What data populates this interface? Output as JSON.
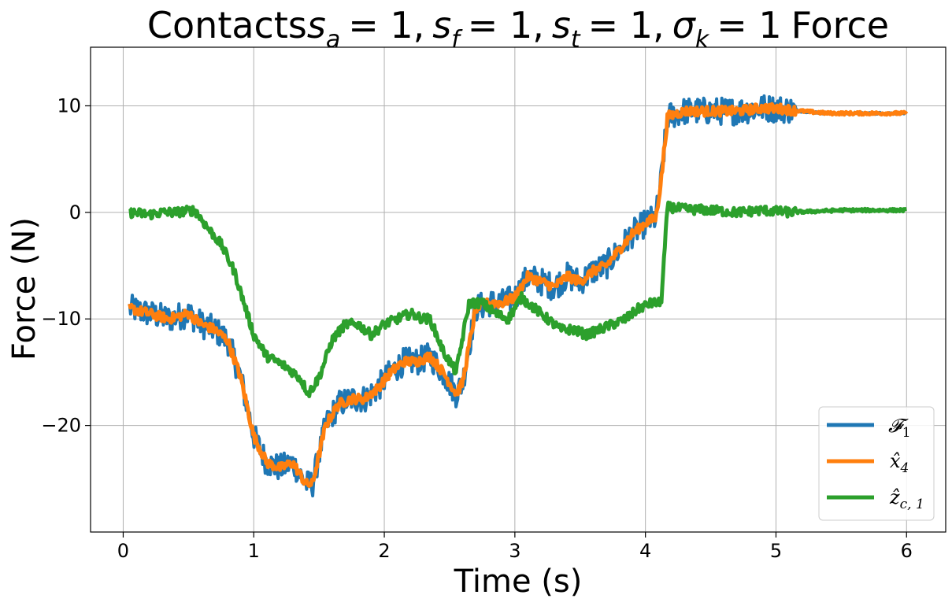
{
  "chart_data": {
    "type": "line",
    "title": "Contacts_a = 1, s_f = 1, s_t = 1, σ_k = 1 Force",
    "title_parts": {
      "prefix": "Contacts",
      "a_sub": "a",
      "f_sub": "f",
      "t_sub": "t",
      "k_sub": "k",
      "eq": "= 1,",
      "eq_last": "= 1",
      "s": "s",
      "sigma": "σ",
      "suffix": "Force"
    },
    "xlabel": "Time (s)",
    "ylabel": "Force (N)",
    "xlim": [
      -0.25,
      6.3
    ],
    "ylim": [
      -30,
      15.5
    ],
    "xticks": [
      0,
      1,
      2,
      3,
      4,
      5,
      6
    ],
    "xtick_labels": [
      "0",
      "1",
      "2",
      "3",
      "4",
      "5",
      "6"
    ],
    "yticks": [
      10,
      0,
      -10,
      -20
    ],
    "ytick_labels": [
      "10",
      "0",
      "−10",
      "−20"
    ],
    "grid": true,
    "legend_position": "lower-right",
    "series": [
      {
        "name": "𝓕₁",
        "legend_main": "𝓕",
        "legend_sub": "1",
        "color": "#1f77b4",
        "noise": 1.3,
        "x": [
          0.05,
          0.2,
          0.35,
          0.5,
          0.6,
          0.7,
          0.8,
          0.9,
          1.0,
          1.1,
          1.2,
          1.3,
          1.4,
          1.45,
          1.55,
          1.65,
          1.75,
          1.85,
          1.95,
          2.05,
          2.15,
          2.25,
          2.35,
          2.45,
          2.55,
          2.6,
          2.7,
          2.8,
          2.9,
          3.0,
          3.1,
          3.2,
          3.3,
          3.4,
          3.5,
          3.6,
          3.7,
          3.8,
          3.9,
          4.0,
          4.08,
          4.12,
          4.17,
          4.3,
          4.5,
          4.7,
          4.9,
          5.05,
          5.2,
          5.4,
          5.6,
          5.8,
          6.0
        ],
        "y": [
          -9,
          -9.5,
          -10,
          -9.5,
          -10.5,
          -11,
          -12,
          -15.5,
          -21,
          -23.5,
          -24,
          -23.5,
          -25.5,
          -25.5,
          -20,
          -18,
          -17.5,
          -17.5,
          -16.5,
          -15,
          -14,
          -14,
          -13.5,
          -15,
          -17,
          -16,
          -9,
          -8.5,
          -8.5,
          -8,
          -6,
          -6.5,
          -7,
          -6,
          -6.5,
          -5.5,
          -5,
          -3.5,
          -2,
          -1,
          -0.5,
          3,
          9,
          9.5,
          9.5,
          9.5,
          9.8,
          9.7,
          9.5,
          9.3,
          9.3,
          9.3,
          9.3
        ]
      },
      {
        "name": "x̂₄",
        "legend_main": "x̂",
        "legend_sub": "4",
        "color": "#ff7f0e",
        "noise": 0.45,
        "x": [
          0.05,
          0.2,
          0.35,
          0.5,
          0.6,
          0.7,
          0.8,
          0.9,
          1.0,
          1.1,
          1.2,
          1.3,
          1.4,
          1.45,
          1.55,
          1.65,
          1.75,
          1.85,
          1.95,
          2.05,
          2.15,
          2.25,
          2.35,
          2.45,
          2.55,
          2.6,
          2.7,
          2.8,
          2.9,
          3.0,
          3.1,
          3.2,
          3.3,
          3.4,
          3.5,
          3.6,
          3.7,
          3.8,
          3.9,
          4.0,
          4.08,
          4.12,
          4.17,
          4.3,
          4.5,
          4.7,
          4.9,
          5.05,
          5.2,
          5.4,
          5.6,
          5.8,
          6.0
        ],
        "y": [
          -9,
          -9.5,
          -10,
          -9.5,
          -10.5,
          -11,
          -12,
          -15.5,
          -21,
          -23.5,
          -24,
          -23.5,
          -25.5,
          -25.5,
          -20,
          -18,
          -17.5,
          -17.5,
          -16.5,
          -15,
          -14,
          -14,
          -13.5,
          -15,
          -17,
          -16,
          -9,
          -8.5,
          -8.5,
          -8,
          -6,
          -6.5,
          -7,
          -6,
          -6.5,
          -5.5,
          -5,
          -3.5,
          -2,
          -1,
          -0.5,
          3,
          9,
          9.5,
          9.5,
          9.5,
          9.8,
          9.7,
          9.5,
          9.3,
          9.3,
          9.3,
          9.3
        ]
      },
      {
        "name": "ẑ_c,1",
        "legend_main": "ẑ",
        "legend_sub": "c, 1",
        "color": "#2ca02c",
        "noise": 0.45,
        "x": [
          0.05,
          0.2,
          0.3,
          0.4,
          0.55,
          0.65,
          0.75,
          0.85,
          0.95,
          1.0,
          1.1,
          1.25,
          1.35,
          1.42,
          1.5,
          1.6,
          1.7,
          1.8,
          1.9,
          2.0,
          2.1,
          2.2,
          2.3,
          2.35,
          2.45,
          2.55,
          2.65,
          2.75,
          2.85,
          2.95,
          3.05,
          3.15,
          3.25,
          3.35,
          3.45,
          3.55,
          3.65,
          3.75,
          3.85,
          3.95,
          4.05,
          4.12,
          4.17,
          4.3,
          4.5,
          4.7,
          4.9,
          5.1,
          5.3,
          5.5,
          5.7,
          6.0
        ],
        "y": [
          0,
          -0.2,
          0,
          0,
          0.2,
          -1.5,
          -3,
          -5.5,
          -9.5,
          -11.5,
          -13.5,
          -14.5,
          -15.5,
          -17,
          -15.5,
          -12,
          -10.5,
          -10.5,
          -11.5,
          -10.5,
          -10,
          -9.5,
          -10,
          -10,
          -13,
          -15,
          -8.5,
          -8.5,
          -9.5,
          -10,
          -8,
          -9,
          -10,
          -11,
          -11,
          -11.5,
          -11,
          -10.5,
          -10,
          -9,
          -8.5,
          -8.5,
          0.5,
          0.3,
          0.2,
          0,
          0.2,
          0,
          0.1,
          0.2,
          0.2,
          0.2
        ]
      }
    ]
  }
}
